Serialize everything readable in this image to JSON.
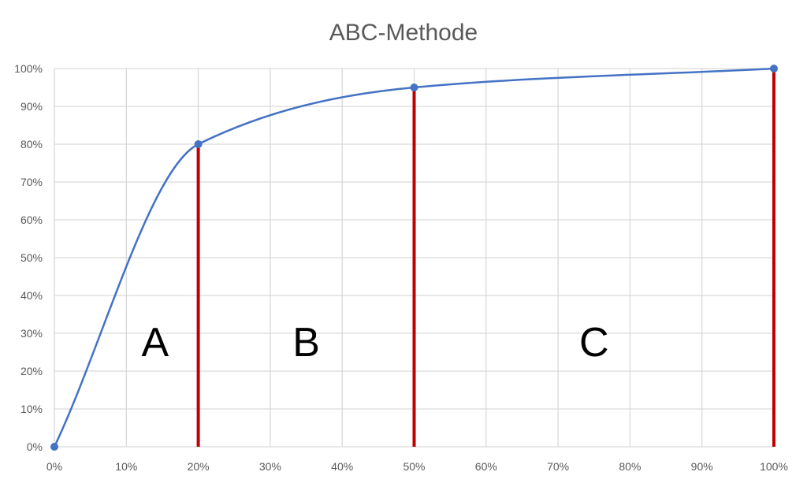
{
  "chart_data": {
    "type": "line",
    "title": "ABC-Methode",
    "xlabel": "",
    "ylabel": "",
    "x_ticks": [
      "0%",
      "10%",
      "20%",
      "30%",
      "40%",
      "50%",
      "60%",
      "70%",
      "80%",
      "90%",
      "100%"
    ],
    "y_ticks": [
      "0%",
      "10%",
      "20%",
      "30%",
      "40%",
      "50%",
      "60%",
      "70%",
      "80%",
      "90%",
      "100%"
    ],
    "xlim": [
      0,
      100
    ],
    "ylim": [
      0,
      100
    ],
    "grid": true,
    "series": [
      {
        "color": "#4472C4",
        "smooth": true,
        "points": [
          {
            "x": 0,
            "y": 0
          },
          {
            "x": 20,
            "y": 80
          },
          {
            "x": 50,
            "y": 95
          },
          {
            "x": 100,
            "y": 100
          }
        ]
      }
    ],
    "vertical_markers": [
      {
        "x": 20,
        "y": 80,
        "color": "#C00000"
      },
      {
        "x": 50,
        "y": 95,
        "color": "#C00000"
      },
      {
        "x": 100,
        "y": 100,
        "color": "#C00000"
      }
    ],
    "zone_labels": [
      {
        "text": "A",
        "x": 14,
        "y": 24
      },
      {
        "text": "B",
        "x": 35,
        "y": 24
      },
      {
        "text": "C",
        "x": 75,
        "y": 24
      }
    ]
  }
}
